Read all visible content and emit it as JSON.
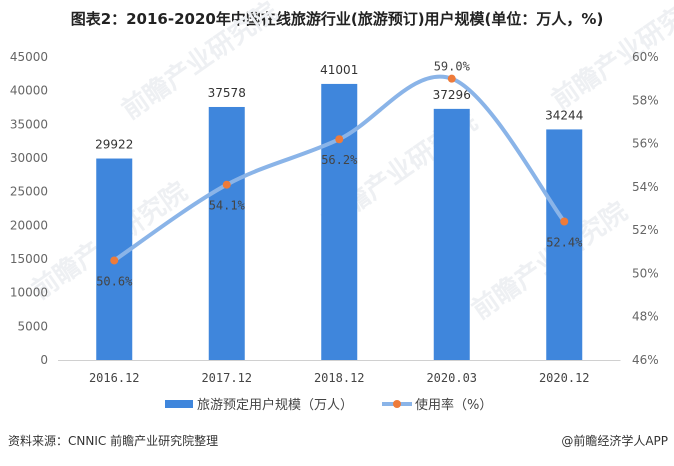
{
  "title": "图表2：2016-2020年中国在线旅游行业(旅游预订)用户规模(单位：万人，%)",
  "source": "资料来源：CNNIC 前瞻产业研究院整理",
  "credit": "@前瞻经济学人APP",
  "watermark": "前瞻产业研究院",
  "colors": {
    "bar": "#3f86dc",
    "line": "#8ab4e8",
    "marker": "#ee7b3a"
  },
  "chart_data": {
    "type": "bar",
    "categories": [
      "2016.12",
      "2017.12",
      "2018.12",
      "2020.03",
      "2020.12"
    ],
    "series": [
      {
        "name": "旅游预定用户规模（万人）",
        "type": "bar",
        "axis": "left",
        "values": [
          29922,
          37578,
          41001,
          37296,
          34244
        ],
        "labels": [
          "29922",
          "37578",
          "41001",
          "37296",
          "34244"
        ]
      },
      {
        "name": "使用率（%）",
        "type": "line",
        "axis": "right",
        "values": [
          50.6,
          54.1,
          56.2,
          59.0,
          52.4
        ],
        "labels": [
          "50.6%",
          "54.1%",
          "56.2%",
          "59.0%",
          "52.4%"
        ]
      }
    ],
    "y_left": {
      "range": [
        0,
        45000
      ],
      "ticks": [
        "0",
        "5000",
        "10000",
        "15000",
        "20000",
        "25000",
        "30000",
        "35000",
        "40000",
        "45000"
      ]
    },
    "y_right": {
      "range": [
        46,
        60
      ],
      "ticks": [
        "46%",
        "48%",
        "50%",
        "52%",
        "54%",
        "56%",
        "58%",
        "60%"
      ]
    },
    "legend": "bottom",
    "grid": false
  }
}
